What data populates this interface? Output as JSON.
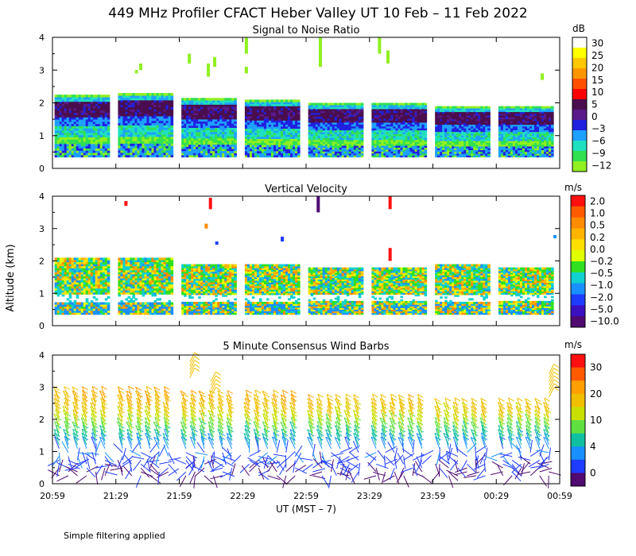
{
  "title": "449 MHz Profiler CFACT Heber Valley UT 10 Feb – 11 Feb 2022",
  "ylabel": "Altitude (km)",
  "xlabel": "UT  (MST – 7)",
  "footnote": "Simple filtering applied",
  "x_ticks": [
    "20:59",
    "21:29",
    "21:59",
    "22:29",
    "22:59",
    "23:29",
    "23:59",
    "00:29",
    "00:59"
  ],
  "chart_data": [
    {
      "type": "heatmap",
      "title": "Signal to Noise Ratio",
      "units": "dB",
      "xlim": [
        "20:59",
        "00:59"
      ],
      "ylim": [
        0,
        4
      ],
      "y_ticks": [
        0,
        1,
        2,
        3,
        4
      ],
      "colorbar": {
        "labels": [
          "30",
          "25",
          "20",
          "15",
          "10",
          "5",
          "0",
          "−3",
          "−6",
          "−9",
          "−12"
        ],
        "colors": [
          "#ffffff",
          "#ffff00",
          "#ffc800",
          "#ff9600",
          "#ff5000",
          "#ff0000",
          "#4a0e4e",
          "#5a1a8a",
          "#2020e0",
          "#1ea0ff",
          "#20e0c0",
          "#30e050",
          "#90f020"
        ]
      },
      "blocks": [
        {
          "start": "21:00",
          "end": "21:26",
          "top_km": 2.25
        },
        {
          "start": "21:30",
          "end": "21:56",
          "top_km": 2.3
        },
        {
          "start": "22:00",
          "end": "22:26",
          "top_km": 2.15
        },
        {
          "start": "22:30",
          "end": "22:56",
          "top_km": 2.1
        },
        {
          "start": "23:00",
          "end": "23:26",
          "top_km": 2.0
        },
        {
          "start": "23:30",
          "end": "23:56",
          "top_km": 2.0
        },
        {
          "start": "00:00",
          "end": "00:26",
          "top_km": 1.9
        },
        {
          "start": "00:30",
          "end": "00:56",
          "top_km": 1.9
        }
      ]
    },
    {
      "type": "heatmap",
      "title": "Vertical Velocity",
      "units": "m/s",
      "xlim": [
        "20:59",
        "00:59"
      ],
      "ylim": [
        0,
        4
      ],
      "y_ticks": [
        0,
        1,
        2,
        3,
        4
      ],
      "colorbar": {
        "labels": [
          "2.0",
          "1.0",
          "0.5",
          "0.2",
          "0.0",
          "−0.2",
          "−0.5",
          "−1.0",
          "−2.0",
          "−5.0",
          "−10.0"
        ],
        "colors": [
          "#ff1010",
          "#ff5a00",
          "#ff8c00",
          "#ffb400",
          "#ffe000",
          "#e0ff00",
          "#30e020",
          "#10d0d0",
          "#1890ff",
          "#1e3cff",
          "#3a10c0",
          "#500a70"
        ]
      },
      "blocks": [
        {
          "start": "21:00",
          "end": "21:26",
          "top_km": 2.1
        },
        {
          "start": "21:30",
          "end": "21:56",
          "top_km": 2.1
        },
        {
          "start": "22:00",
          "end": "22:26",
          "top_km": 1.9
        },
        {
          "start": "22:30",
          "end": "22:56",
          "top_km": 1.9
        },
        {
          "start": "23:00",
          "end": "23:26",
          "top_km": 1.8
        },
        {
          "start": "23:30",
          "end": "23:56",
          "top_km": 1.8
        },
        {
          "start": "00:00",
          "end": "00:26",
          "top_km": 1.9
        },
        {
          "start": "00:30",
          "end": "00:56",
          "top_km": 1.8
        }
      ]
    },
    {
      "type": "wind_barbs",
      "title": "5 Minute Consensus Wind Barbs",
      "units": "m/s",
      "xlim": [
        "20:59",
        "00:59"
      ],
      "ylim": [
        0,
        4
      ],
      "y_ticks": [
        0,
        1,
        2,
        3,
        4
      ],
      "colorbar": {
        "labels": [
          "30",
          "20",
          "10",
          "4",
          "0"
        ],
        "colors": [
          "#ff1010",
          "#ff5a00",
          "#ffa000",
          "#f0c000",
          "#c8e000",
          "#60e040",
          "#10c0a0",
          "#1890ff",
          "#1e3cff",
          "#500a70"
        ]
      },
      "profile": {
        "speed_by_altitude_km": [
          {
            "altitude_km": 0.5,
            "speed_ms": 2
          },
          {
            "altitude_km": 1.0,
            "speed_ms": 5
          },
          {
            "altitude_km": 1.5,
            "speed_ms": 12
          },
          {
            "altitude_km": 2.0,
            "speed_ms": 18
          },
          {
            "altitude_km": 2.5,
            "speed_ms": 22
          }
        ]
      }
    }
  ]
}
